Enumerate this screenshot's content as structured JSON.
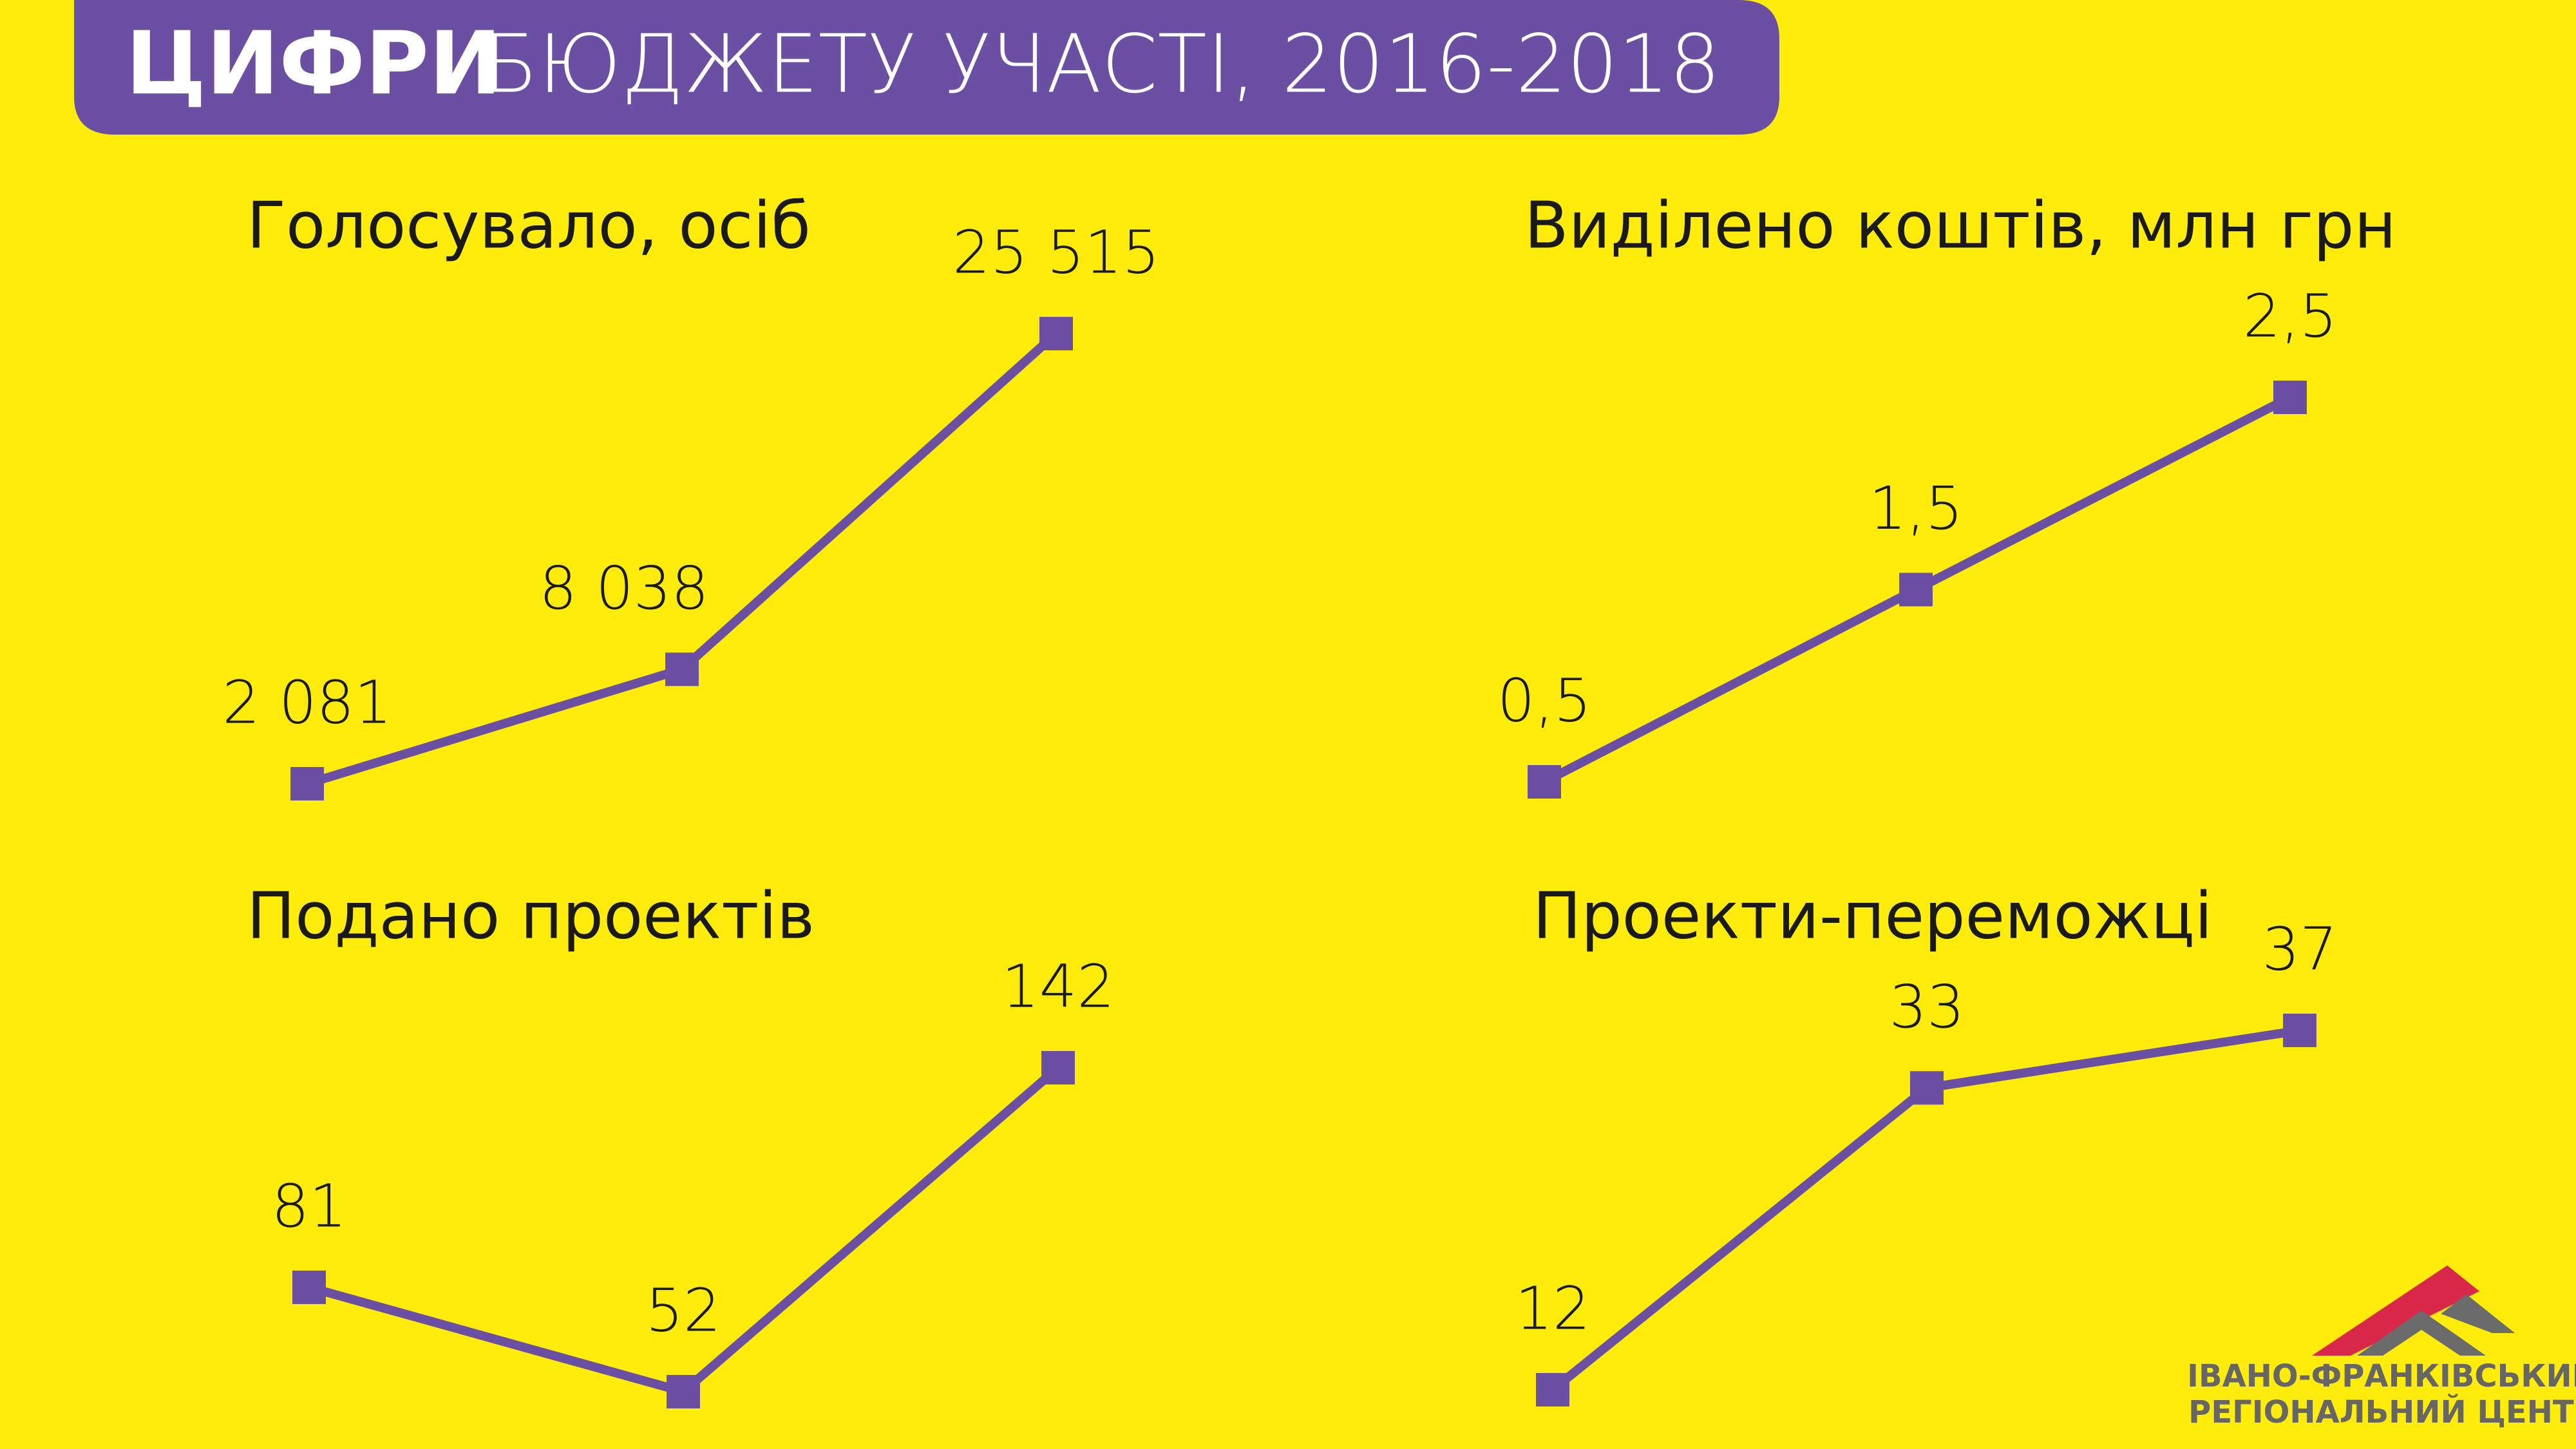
{
  "header": {
    "title_strong": "ЦИФРИ",
    "title": "БЮДЖЕТУ УЧАСТІ, 2016-2018"
  },
  "chart_data": [
    {
      "type": "line",
      "title": "Голосувало, осіб",
      "categories": [
        null,
        null,
        null
      ],
      "series": [
        {
          "color": "#6a4fa3",
          "values": [
            2081,
            8038,
            25515
          ],
          "value_labels": [
            "2 081",
            "8 038",
            "25 515"
          ]
        }
      ]
    },
    {
      "type": "line",
      "title": "Виділено коштів, млн грн",
      "categories": [
        null,
        null,
        null
      ],
      "series": [
        {
          "color": "#6a4fa3",
          "values": [
            0.5,
            1.5,
            2.5
          ],
          "value_labels": [
            "0,5",
            "1,5",
            "2,5"
          ]
        }
      ]
    },
    {
      "type": "line",
      "title": "Подано проектів",
      "categories": [
        null,
        null,
        null
      ],
      "series": [
        {
          "color": "#6a4fa3",
          "values": [
            81,
            52,
            142
          ]
        }
      ]
    },
    {
      "type": "line",
      "title": "Проекти-переможці",
      "categories": [
        null,
        null,
        null
      ],
      "series": [
        {
          "color": "#6a4fa3",
          "values": [
            12,
            33,
            37
          ]
        }
      ]
    }
  ],
  "logo": {
    "line1": "ІВАНО-ФРАНКІВСЬКИЙ",
    "line2": "РЕГІОНАЛЬНИЙ ЦЕНТР"
  }
}
